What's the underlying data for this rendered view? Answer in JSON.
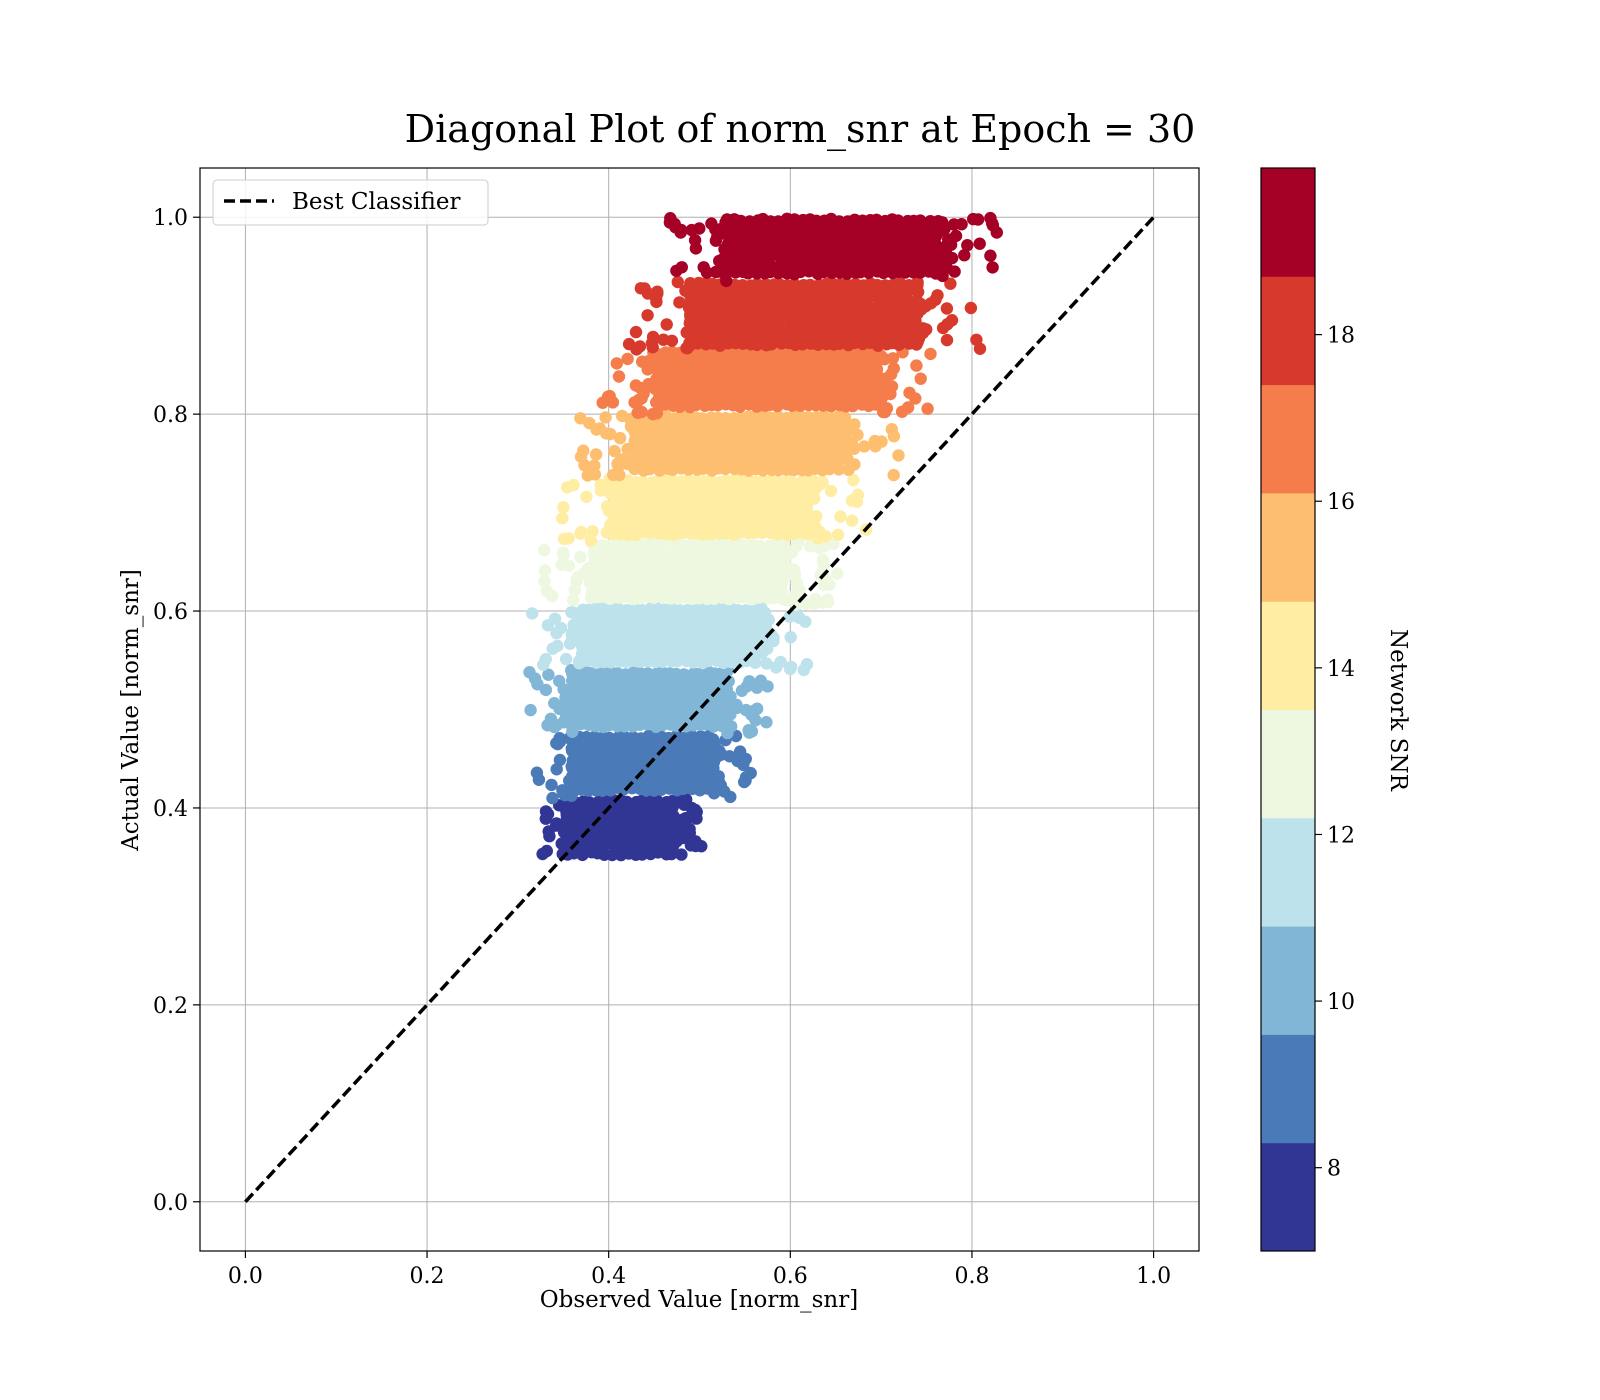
{
  "chart_data": {
    "type": "scatter",
    "title": "Diagonal Plot of norm_snr at Epoch = 30",
    "xlabel": "Observed Value [norm_snr]",
    "ylabel": "Actual Value [norm_snr]",
    "xlim": [
      -0.05,
      1.05
    ],
    "ylim": [
      -0.05,
      1.05
    ],
    "xticks": [
      "0.0",
      "0.2",
      "0.4",
      "0.6",
      "0.8",
      "1.0"
    ],
    "yticks": [
      "0.0",
      "0.2",
      "0.4",
      "0.6",
      "0.8",
      "1.0"
    ],
    "grid": true,
    "legend": {
      "position": "top-left",
      "entries": [
        "Best Classifier"
      ]
    },
    "reference_line": {
      "name": "Best Classifier",
      "style": "dashed",
      "color": "#000000",
      "x": [
        0.0,
        1.0
      ],
      "y": [
        0.0,
        1.0
      ]
    },
    "colorbar": {
      "label": "Network SNR",
      "range": [
        7,
        20
      ],
      "ticks": [
        "8",
        "10",
        "12",
        "14",
        "16",
        "18"
      ],
      "bands": [
        {
          "from": 7,
          "to": 8.3,
          "color": "#313695"
        },
        {
          "from": 8.3,
          "to": 9.6,
          "color": "#4a7ab7"
        },
        {
          "from": 9.6,
          "to": 10.9,
          "color": "#81b6d6"
        },
        {
          "from": 10.9,
          "to": 12.2,
          "color": "#bde2ec"
        },
        {
          "from": 12.2,
          "to": 13.5,
          "color": "#eef8e0"
        },
        {
          "from": 13.5,
          "to": 14.8,
          "color": "#feeda2"
        },
        {
          "from": 14.8,
          "to": 16.1,
          "color": "#fdbe70"
        },
        {
          "from": 16.1,
          "to": 17.4,
          "color": "#f57d4b"
        },
        {
          "from": 17.4,
          "to": 18.7,
          "color": "#d73a2d"
        },
        {
          "from": 18.7,
          "to": 20,
          "color": "#a50026"
        }
      ]
    },
    "scatter_bands": [
      {
        "snr": 7.6,
        "y": [
          0.35,
          0.41
        ],
        "x_core": [
          0.355,
          0.475
        ],
        "color": "#313695"
      },
      {
        "snr": 8.9,
        "y": [
          0.41,
          0.475
        ],
        "x_core": [
          0.36,
          0.515
        ],
        "color": "#4a7ab7"
      },
      {
        "snr": 10.2,
        "y": [
          0.475,
          0.54
        ],
        "x_core": [
          0.36,
          0.53
        ],
        "color": "#81b6d6"
      },
      {
        "snr": 11.5,
        "y": [
          0.54,
          0.605
        ],
        "x_core": [
          0.37,
          0.565
        ],
        "color": "#bde2ec"
      },
      {
        "snr": 12.8,
        "y": [
          0.605,
          0.67
        ],
        "x_core": [
          0.385,
          0.595
        ],
        "color": "#eef8e0"
      },
      {
        "snr": 14.1,
        "y": [
          0.67,
          0.735
        ],
        "x_core": [
          0.405,
          0.625
        ],
        "color": "#feeda2"
      },
      {
        "snr": 15.4,
        "y": [
          0.735,
          0.8
        ],
        "x_core": [
          0.43,
          0.66
        ],
        "color": "#fdbe70"
      },
      {
        "snr": 16.7,
        "y": [
          0.8,
          0.865
        ],
        "x_core": [
          0.455,
          0.7
        ],
        "color": "#f57d4b"
      },
      {
        "snr": 18.0,
        "y": [
          0.865,
          0.935
        ],
        "x_core": [
          0.49,
          0.74
        ],
        "color": "#d73a2d"
      },
      {
        "snr": 19.3,
        "y": [
          0.935,
          1.0
        ],
        "x_core": [
          0.53,
          0.765
        ],
        "color": "#a50026"
      }
    ]
  }
}
